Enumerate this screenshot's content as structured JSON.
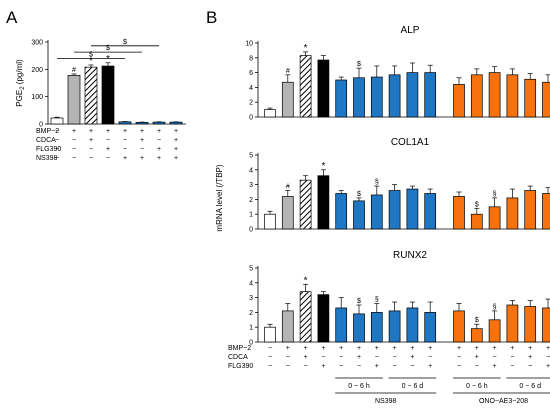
{
  "panel_labels": [
    "A",
    "B"
  ],
  "chart_data": [
    {
      "type": "bar",
      "panel": "A",
      "title": "",
      "ylabel": "PGE2 (pg/ml)",
      "ylabel_main": "PGE",
      "ylabel_sub": "2",
      "ylabel_unit": " (pg/ml)",
      "ylim": [
        0,
        300
      ],
      "yticks": [
        0,
        100,
        200,
        300
      ],
      "ytick_labels": [
        "0",
        "100",
        "200",
        "300"
      ],
      "bar_styles": [
        "white",
        "gray",
        "hatch",
        "black",
        "blue",
        "blue",
        "blue",
        "blue"
      ],
      "values": [
        22,
        178,
        208,
        212,
        8,
        6,
        7,
        7
      ],
      "errors": [
        3,
        5,
        8,
        12,
        1,
        1,
        1,
        1
      ],
      "annotations": [
        "",
        "#",
        "*",
        "*",
        "",
        "",
        "",
        ""
      ],
      "comparisons": [
        {
          "from": 1,
          "to": 5,
          "label": "$"
        },
        {
          "from": 2,
          "to": 6,
          "label": "$"
        },
        {
          "from": 3,
          "to": 7,
          "label": "$"
        },
        {
          "from": 4,
          "to": 4,
          "label": ""
        }
      ],
      "factors": [
        {
          "label": "BMP−2",
          "signs": [
            "−",
            "+",
            "+",
            "+",
            "+",
            "+",
            "+",
            "+"
          ]
        },
        {
          "label": "CDCA",
          "signs": [
            "−",
            "−",
            "+",
            "−",
            "−",
            "+",
            "−",
            "+"
          ]
        },
        {
          "label": "FLG390",
          "signs": [
            "−",
            "−",
            "−",
            "+",
            "−",
            "−",
            "+",
            "+"
          ]
        },
        {
          "label": "NS398",
          "signs": [
            "−",
            "−",
            "−",
            "−",
            "+",
            "+",
            "+",
            "+"
          ]
        }
      ]
    },
    {
      "type": "bar",
      "panel": "B",
      "title": "ALP",
      "ylim": [
        0,
        10
      ],
      "yticks": [
        0,
        2,
        4,
        6,
        8,
        10
      ],
      "ytick_labels": [
        "0",
        "2",
        "4",
        "6",
        "8",
        "10"
      ],
      "values": [
        1.0,
        4.7,
        8.3,
        7.7,
        5.0,
        5.3,
        5.4,
        5.7,
        6.0,
        6.0,
        4.4,
        5.7,
        6.0,
        5.7,
        5.1,
        4.7
      ],
      "errors": [
        0.2,
        1.0,
        0.5,
        0.6,
        0.4,
        1.3,
        1.5,
        1.2,
        1.3,
        1.0,
        0.9,
        0.8,
        0.8,
        0.8,
        0.8,
        1.0
      ],
      "annotations": [
        "",
        "#",
        "*",
        "",
        "",
        "$",
        "",
        "",
        "",
        "",
        "",
        "",
        "",
        "",
        "",
        ""
      ]
    },
    {
      "type": "bar",
      "panel": "B",
      "title": "COL1A1",
      "ylim": [
        0,
        5
      ],
      "yticks": [
        0,
        1,
        2,
        3,
        4,
        5
      ],
      "ytick_labels": [
        "0",
        "1",
        "2",
        "3",
        "4",
        "5"
      ],
      "values": [
        1.0,
        2.2,
        3.3,
        3.6,
        2.4,
        1.9,
        2.3,
        2.6,
        2.7,
        2.4,
        2.2,
        1.0,
        1.5,
        2.1,
        2.6,
        2.4
      ],
      "errors": [
        0.2,
        0.4,
        0.3,
        0.4,
        0.2,
        0.2,
        0.6,
        0.4,
        0.2,
        0.3,
        0.3,
        0.4,
        0.6,
        0.6,
        0.3,
        0.4
      ],
      "annotations": [
        "",
        "#",
        "",
        "*",
        "",
        "$",
        "§",
        "",
        "",
        "",
        "",
        "$",
        "§",
        "",
        "",
        ""
      ]
    },
    {
      "type": "bar",
      "panel": "B",
      "title": "RUNX2",
      "ylim": [
        0,
        5
      ],
      "yticks": [
        0,
        1,
        2,
        3,
        4,
        5
      ],
      "ytick_labels": [
        "0",
        "1",
        "2",
        "3",
        "4",
        "5"
      ],
      "values": [
        1.0,
        2.1,
        3.4,
        3.2,
        2.3,
        1.9,
        2.0,
        2.1,
        2.3,
        2.0,
        2.1,
        0.9,
        1.5,
        2.5,
        2.4,
        2.3
      ],
      "errors": [
        0.2,
        0.5,
        0.5,
        0.2,
        0.7,
        0.6,
        0.6,
        0.6,
        0.4,
        0.7,
        0.5,
        0.3,
        0.6,
        0.3,
        0.4,
        0.6
      ],
      "annotations": [
        "",
        "",
        "*",
        "",
        "",
        "$",
        "§",
        "",
        "",
        "",
        "",
        "$",
        "§",
        "",
        "",
        ""
      ]
    }
  ],
  "panel_b": {
    "ylabel": "mRNA level (/TBP)",
    "bar_styles": [
      "white",
      "gray",
      "hatch",
      "black",
      "blue",
      "blue",
      "blue",
      "blue",
      "blue",
      "blue",
      "orange",
      "orange",
      "orange",
      "orange",
      "orange",
      "orange"
    ],
    "factors": [
      {
        "label": "BMP−2",
        "signs": [
          "−",
          "+",
          "+",
          "+",
          "+",
          "+",
          "+",
          "+",
          "+",
          "+",
          "+",
          "+",
          "+",
          "+",
          "+",
          "+"
        ]
      },
      {
        "label": "CDCA",
        "signs": [
          "−",
          "−",
          "+",
          "−",
          "−",
          "+",
          "−",
          "−",
          "+",
          "−",
          "−",
          "+",
          "−",
          "−",
          "+",
          "−"
        ]
      },
      {
        "label": "FLG390",
        "signs": [
          "−",
          "−",
          "−",
          "+",
          "−",
          "−",
          "+",
          "−",
          "−",
          "+",
          "−",
          "−",
          "+",
          "−",
          "−",
          "+"
        ]
      }
    ],
    "time_groups": [
      {
        "label": "0 − 6 h",
        "from": 4,
        "to": 6
      },
      {
        "label": "0 − 6 d",
        "from": 7,
        "to": 9
      },
      {
        "label": "0 − 6 h",
        "from": 10,
        "to": 12
      },
      {
        "label": "0 − 6 d",
        "from": 13,
        "to": 15
      }
    ],
    "treatments": [
      {
        "label": "NS398",
        "from": 4,
        "to": 9
      },
      {
        "label": "ONO−AE3−208",
        "from": 10,
        "to": 15
      }
    ]
  },
  "colors": {
    "white": "#ffffff",
    "gray": "#b4b4b4",
    "black": "#000000",
    "blue": "#1f77c4",
    "orange": "#f5720f"
  }
}
